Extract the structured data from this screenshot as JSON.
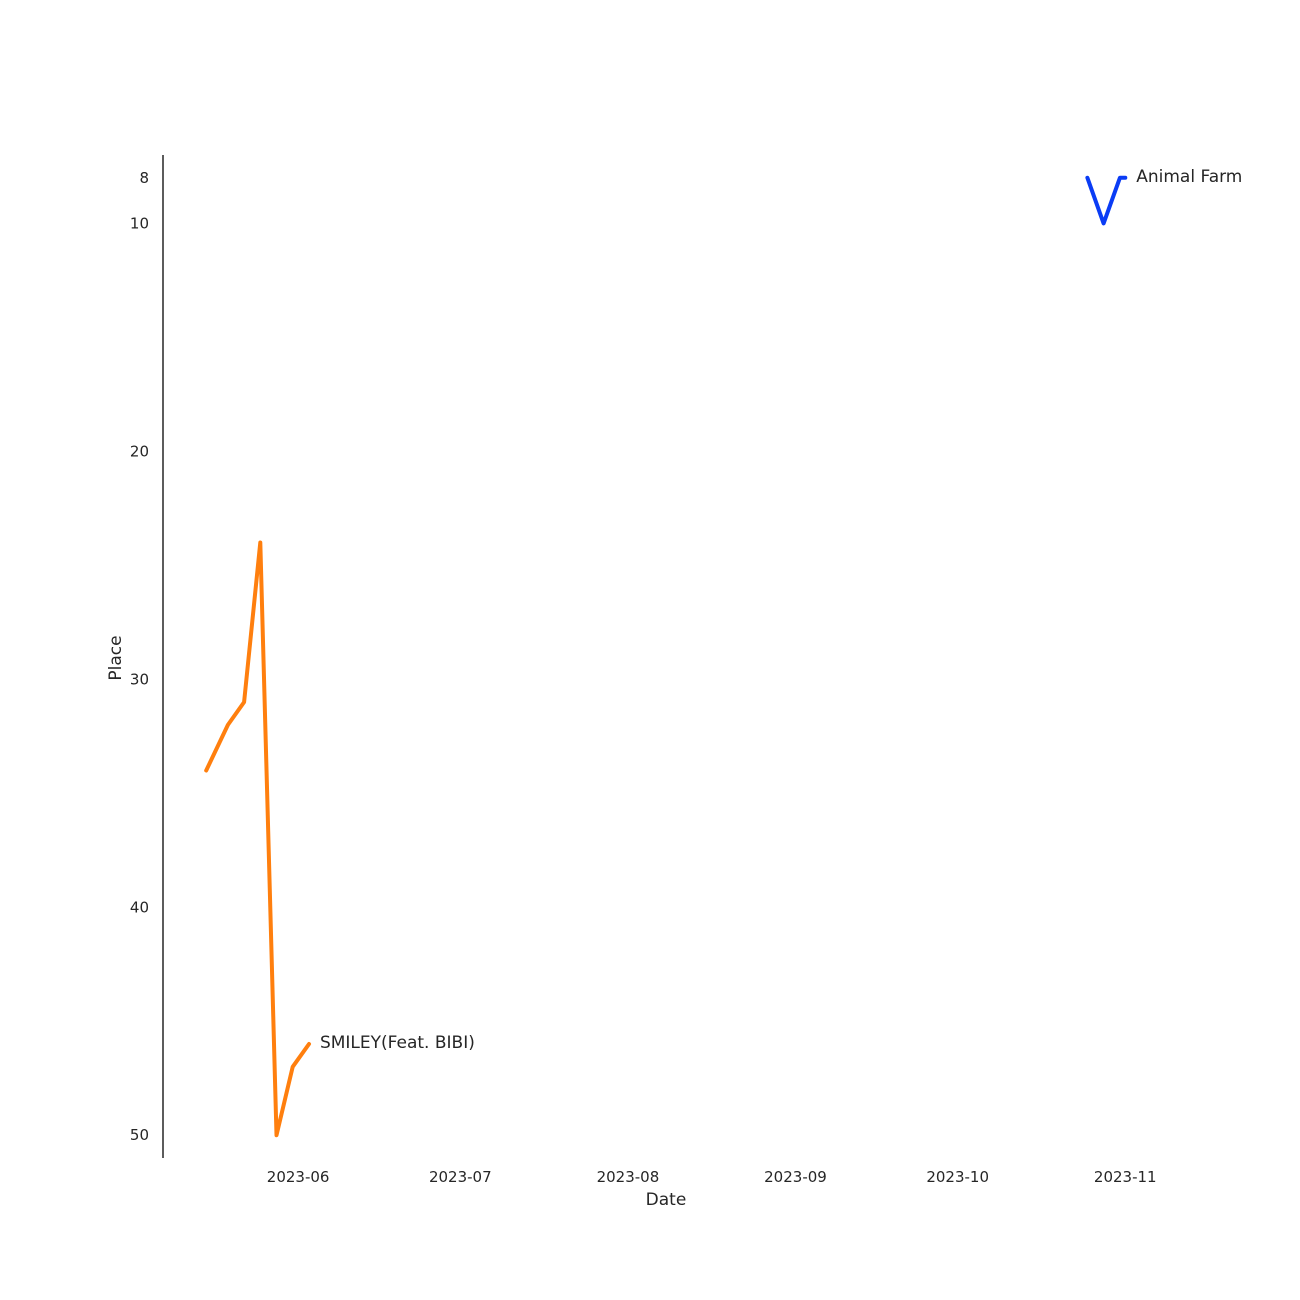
{
  "chart_data": {
    "type": "line",
    "title": "",
    "xlabel": "Date",
    "ylabel": "Place",
    "y_inverted": true,
    "ylim": [
      7,
      51
    ],
    "xlim": [
      "2023-05-07",
      "2023-11-25"
    ],
    "y_ticks": [
      8,
      10,
      20,
      30,
      40,
      50
    ],
    "x_ticks": [
      "2023-06-01",
      "2023-07-01",
      "2023-08-01",
      "2023-09-01",
      "2023-10-01",
      "2023-11-01"
    ],
    "x_tick_labels": [
      "2023-06",
      "2023-07",
      "2023-08",
      "2023-09",
      "2023-10",
      "2023-11"
    ],
    "grid": false,
    "series": [
      {
        "name": "SMILEY(Feat. BIBI)",
        "color": "#ff7f0e",
        "x": [
          "2023-05-15",
          "2023-05-19",
          "2023-05-22",
          "2023-05-25",
          "2023-05-28",
          "2023-05-31",
          "2023-06-03"
        ],
        "y": [
          34,
          32,
          31,
          24,
          50,
          47,
          46
        ]
      },
      {
        "name": "Animal Farm",
        "color": "#0a3cf5",
        "x": [
          "2023-10-25",
          "2023-10-28",
          "2023-10-31",
          "2023-11-01"
        ],
        "y": [
          8,
          10,
          8,
          8
        ]
      }
    ]
  }
}
